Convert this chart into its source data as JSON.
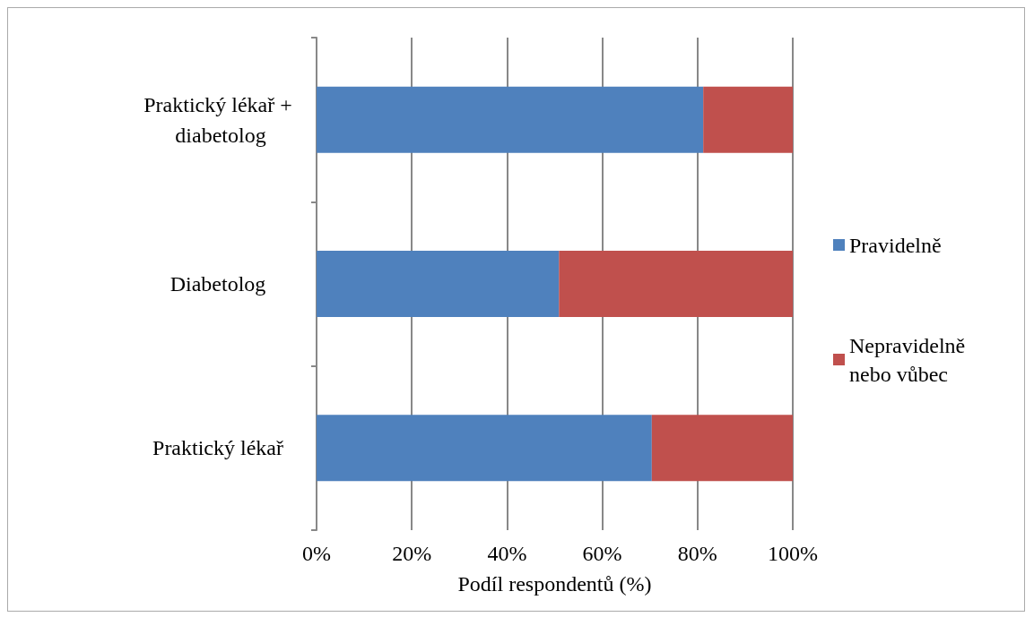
{
  "chart_data": {
    "type": "bar",
    "orientation": "horizontal",
    "stacked": true,
    "xlabel": "Podíl respondentů (%)",
    "categories": [
      "Praktický lékař + diabetolog",
      "Diabetolog",
      "Praktický lékař"
    ],
    "series": [
      {
        "name": "Pravidelně",
        "color": "#4f81bd",
        "values": [
          81.2,
          50.9,
          70.4
        ]
      },
      {
        "name": "Nepravidelně nebo vůbec",
        "color": "#c0504d",
        "values": [
          18.8,
          49.1,
          29.6
        ]
      }
    ],
    "xlim": [
      0,
      100
    ],
    "xticks": [
      {
        "value": 0,
        "label": "0%"
      },
      {
        "value": 20,
        "label": "20%"
      },
      {
        "value": 40,
        "label": "40%"
      },
      {
        "value": 60,
        "label": "60%"
      },
      {
        "value": 80,
        "label": "80%"
      },
      {
        "value": 100,
        "label": "100%"
      }
    ],
    "grid": "x",
    "legend": "right"
  }
}
